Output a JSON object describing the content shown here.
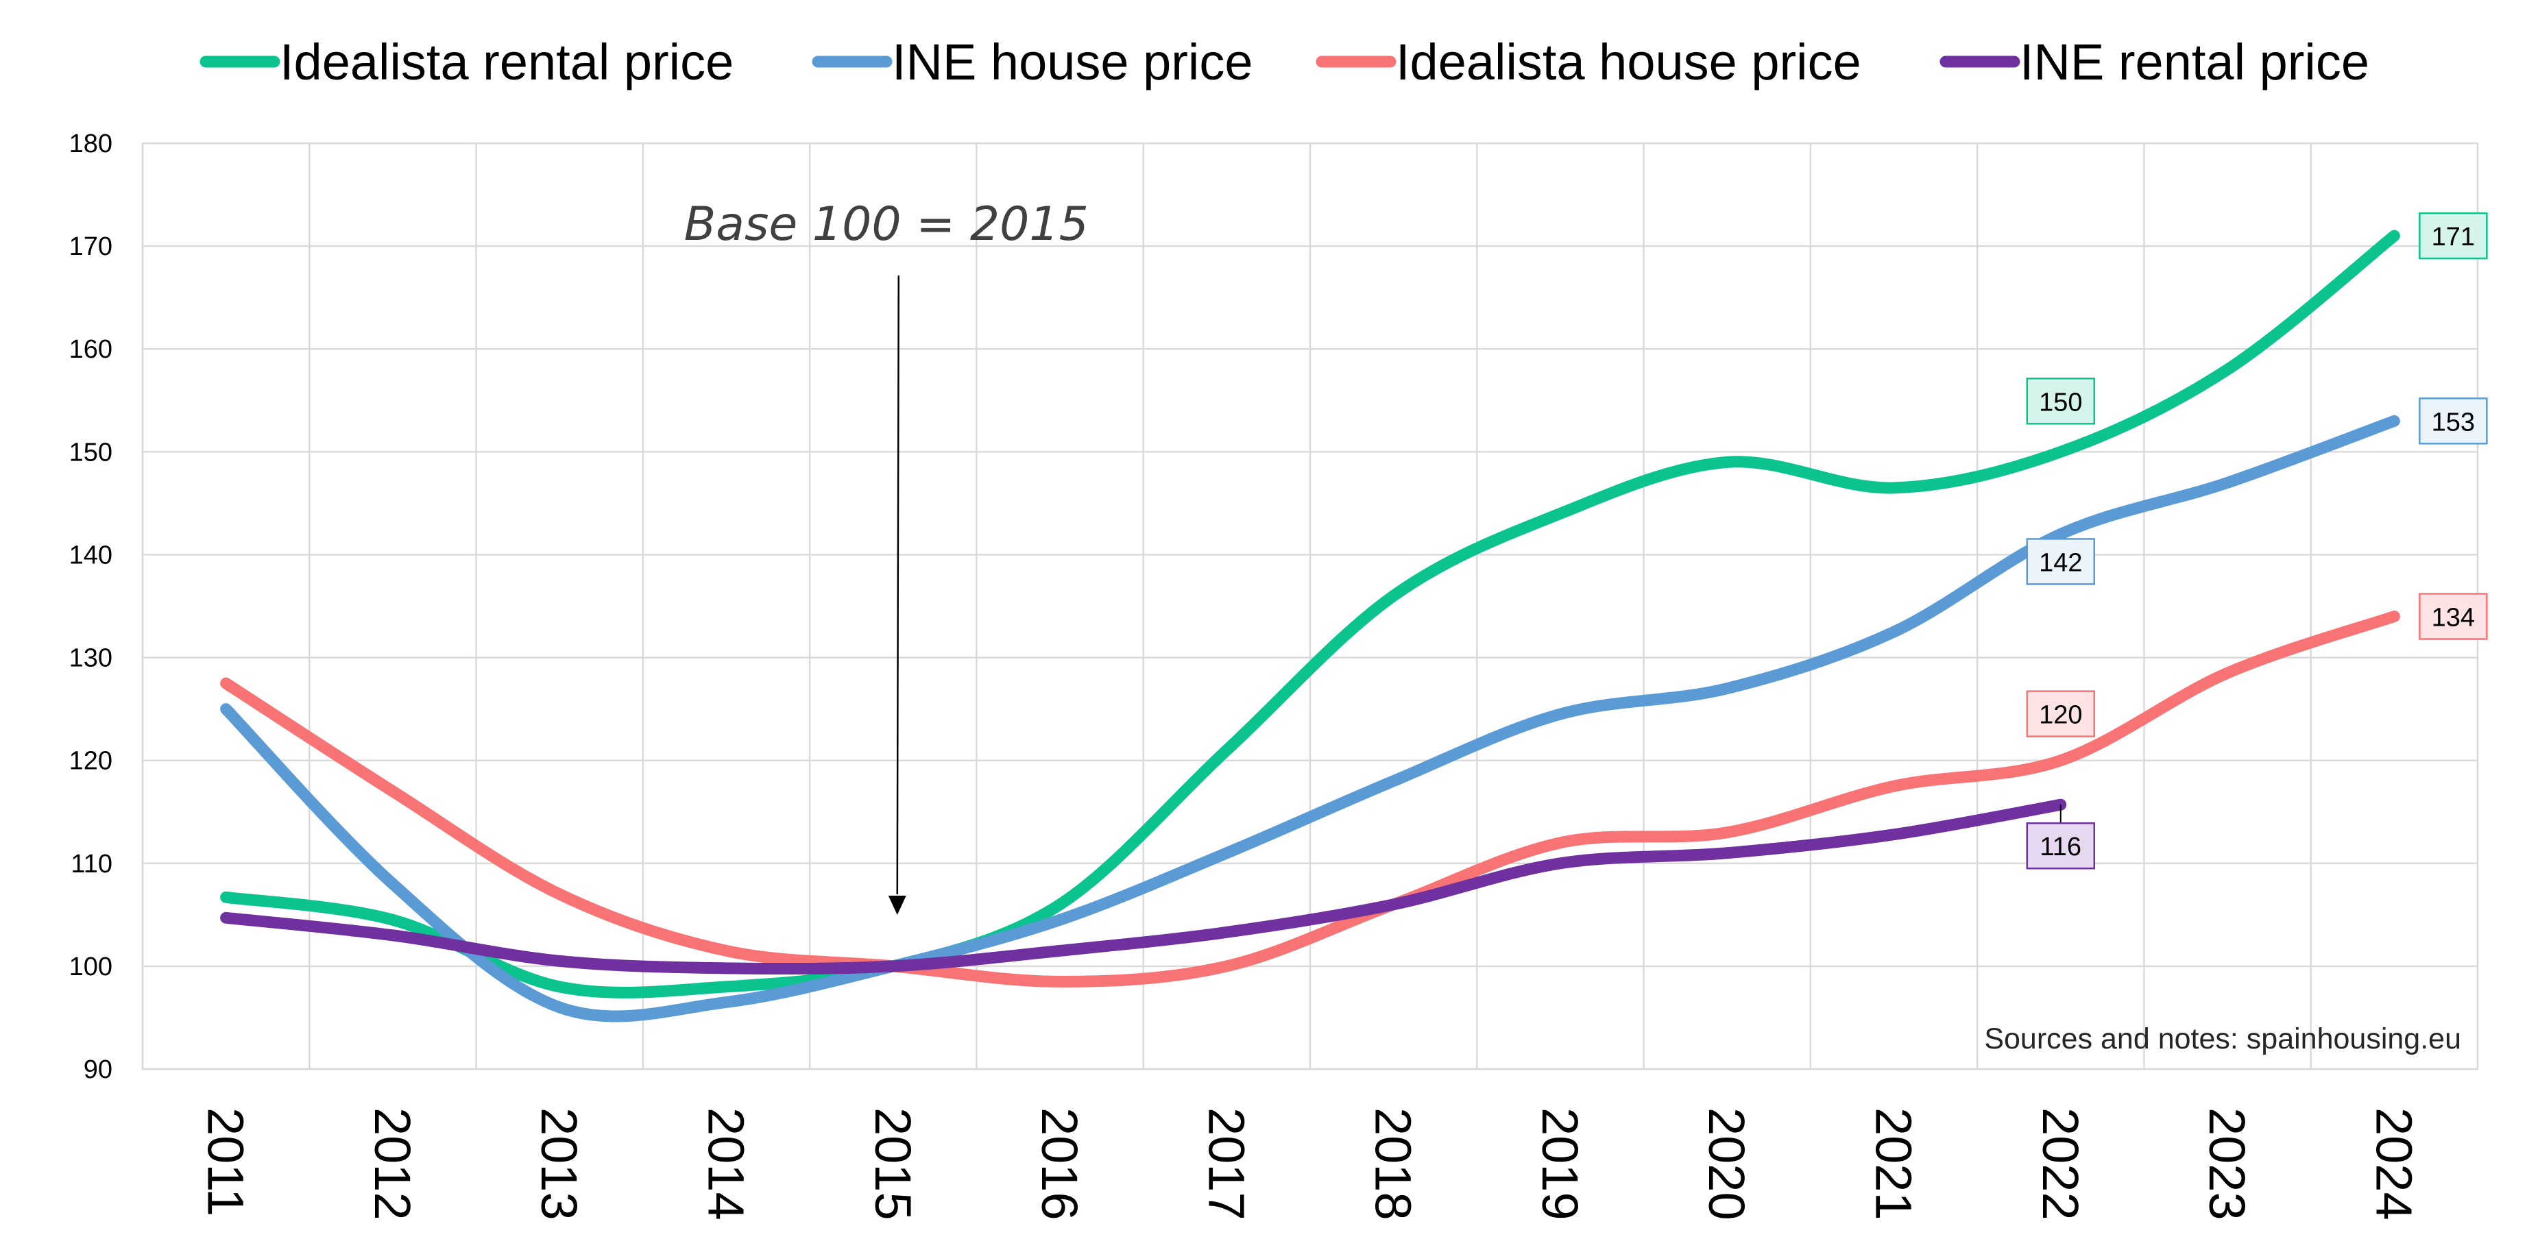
{
  "chart_data": {
    "type": "line",
    "title": "",
    "xlabel": "",
    "ylabel": "",
    "x": [
      "2011",
      "2012",
      "2013",
      "2014",
      "2015",
      "2016",
      "2017",
      "2018",
      "2019",
      "2020",
      "2021",
      "2022",
      "2023",
      "2024"
    ],
    "ylim": [
      90,
      180
    ],
    "y_ticks": [
      "90",
      "100",
      "110",
      "120",
      "130",
      "140",
      "150",
      "160",
      "170",
      "180"
    ],
    "grid": true,
    "legend_position": "top",
    "series": [
      {
        "name": "Idealista rental price",
        "color": "#0BC38E",
        "values": [
          106.7,
          104.5,
          98.0,
          98.0,
          100.0,
          106.0,
          121.0,
          136.0,
          144.0,
          149.0,
          146.5,
          150.0,
          158.0,
          171.0
        ]
      },
      {
        "name": "INE house price",
        "color": "#5B9BD5",
        "values": [
          125.0,
          108.0,
          96.0,
          96.5,
          100.0,
          104.5,
          111.0,
          118.0,
          124.5,
          127.0,
          132.5,
          142.0,
          147.0,
          153.0
        ]
      },
      {
        "name": "Idealista house price",
        "color": "#F87373",
        "values": [
          127.5,
          117.0,
          107.0,
          101.5,
          100.0,
          98.5,
          100.0,
          106.0,
          112.0,
          113.0,
          117.5,
          120.0,
          128.5,
          134.0
        ]
      },
      {
        "name": "INE rental price",
        "color": "#7030A0",
        "values": [
          104.7,
          103.0,
          100.5,
          99.8,
          100.0,
          101.5,
          103.3,
          106.0,
          110.0,
          111.0,
          112.8,
          115.7,
          null,
          null
        ]
      }
    ],
    "data_labels": [
      {
        "series": 0,
        "x": "2024",
        "text": "171",
        "fill": "#D5F5EC"
      },
      {
        "series": 0,
        "x": "2022",
        "text": "150",
        "fill": "#D5F5EC"
      },
      {
        "series": 1,
        "x": "2024",
        "text": "153",
        "fill": "#EBF3FB"
      },
      {
        "series": 1,
        "x": "2022",
        "text": "142",
        "fill": "#EBF3FB"
      },
      {
        "series": 2,
        "x": "2024",
        "text": "134",
        "fill": "#FDE3E3"
      },
      {
        "series": 2,
        "x": "2022",
        "text": "120",
        "fill": "#FDE3E3"
      },
      {
        "series": 3,
        "x": "2022",
        "text": "116",
        "fill": "#E6D8F1"
      }
    ],
    "annotations": {
      "base": "Base 100 = 2015",
      "base_x": "2015",
      "source": "Sources and notes: spainhousing.eu"
    }
  }
}
